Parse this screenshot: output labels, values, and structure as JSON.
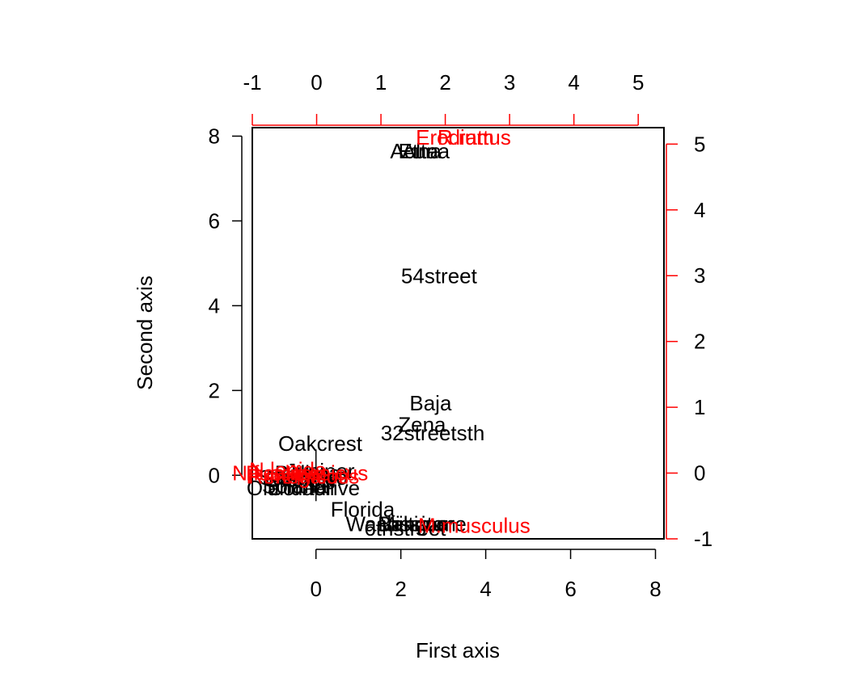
{
  "chart_data": {
    "type": "scatter",
    "title": "",
    "xlabel": "First axis",
    "ylabel": "Second axis",
    "site_axes": {
      "xlim": [
        -1.5,
        8.2
      ],
      "ylim": [
        -1.5,
        8.2
      ],
      "xticks": [
        0,
        2,
        4,
        6,
        8
      ],
      "yticks": [
        0,
        2,
        4,
        6,
        8
      ]
    },
    "species_axes": {
      "color": "#ff0000",
      "xlim": [
        -1.0,
        5.4
      ],
      "ylim": [
        -1.0,
        5.25
      ],
      "xticks": [
        -1,
        0,
        1,
        2,
        3,
        4,
        5
      ],
      "yticks": [
        -1,
        0,
        1,
        2,
        3,
        4,
        5
      ]
    },
    "sites": [
      {
        "label": "Alta",
        "x": 2.45,
        "y": 7.65
      },
      {
        "label": "Acuna",
        "x": 2.45,
        "y": 7.65
      },
      {
        "label": "Etna",
        "x": 2.45,
        "y": 7.65
      },
      {
        "label": "54street",
        "x": 2.9,
        "y": 4.7
      },
      {
        "label": "Baja",
        "x": 2.7,
        "y": 1.7
      },
      {
        "label": "Zena",
        "x": 2.5,
        "y": 1.2
      },
      {
        "label": "32streetsth",
        "x": 2.75,
        "y": 1.0
      },
      {
        "label": "Oakcrest",
        "x": 0.1,
        "y": 0.75
      },
      {
        "label": "Sandiego",
        "x": -0.3,
        "y": -0.05
      },
      {
        "label": "Balboa",
        "x": -0.2,
        "y": 0.05
      },
      {
        "label": "Solana",
        "x": -0.5,
        "y": -0.25
      },
      {
        "label": "Juniper",
        "x": 0.1,
        "y": 0.1
      },
      {
        "label": "Cornell",
        "x": -0.35,
        "y": -0.3
      },
      {
        "label": "Olanda",
        "x": -0.4,
        "y": -0.1
      },
      {
        "label": "Olandadrive",
        "x": -0.3,
        "y": -0.3
      },
      {
        "label": "Florida",
        "x": 1.1,
        "y": -0.8
      },
      {
        "label": "Washington",
        "x": 2.0,
        "y": -1.15
      },
      {
        "label": "Mission",
        "x": 2.3,
        "y": -1.15
      },
      {
        "label": "Baltimore",
        "x": 2.5,
        "y": -1.15
      },
      {
        "label": "6thstreet",
        "x": 2.1,
        "y": -1.25
      }
    ],
    "species": [
      {
        "label": "Erodium",
        "x": 2.15,
        "y": 5.1
      },
      {
        "label": "R.rattus",
        "x": 2.45,
        "y": 5.1
      },
      {
        "label": "N.fuscipes",
        "x": -0.55,
        "y": 0.0
      },
      {
        "label": "P.californicus",
        "x": -0.15,
        "y": 0.0
      },
      {
        "label": "P.eremicus",
        "x": -0.3,
        "y": -0.05
      },
      {
        "label": "N.lepida",
        "x": -0.45,
        "y": 0.05
      },
      {
        "label": "R.megalotis",
        "x": -0.2,
        "y": -0.05
      },
      {
        "label": "M.musculus",
        "x": 2.45,
        "y": -0.8
      }
    ]
  }
}
